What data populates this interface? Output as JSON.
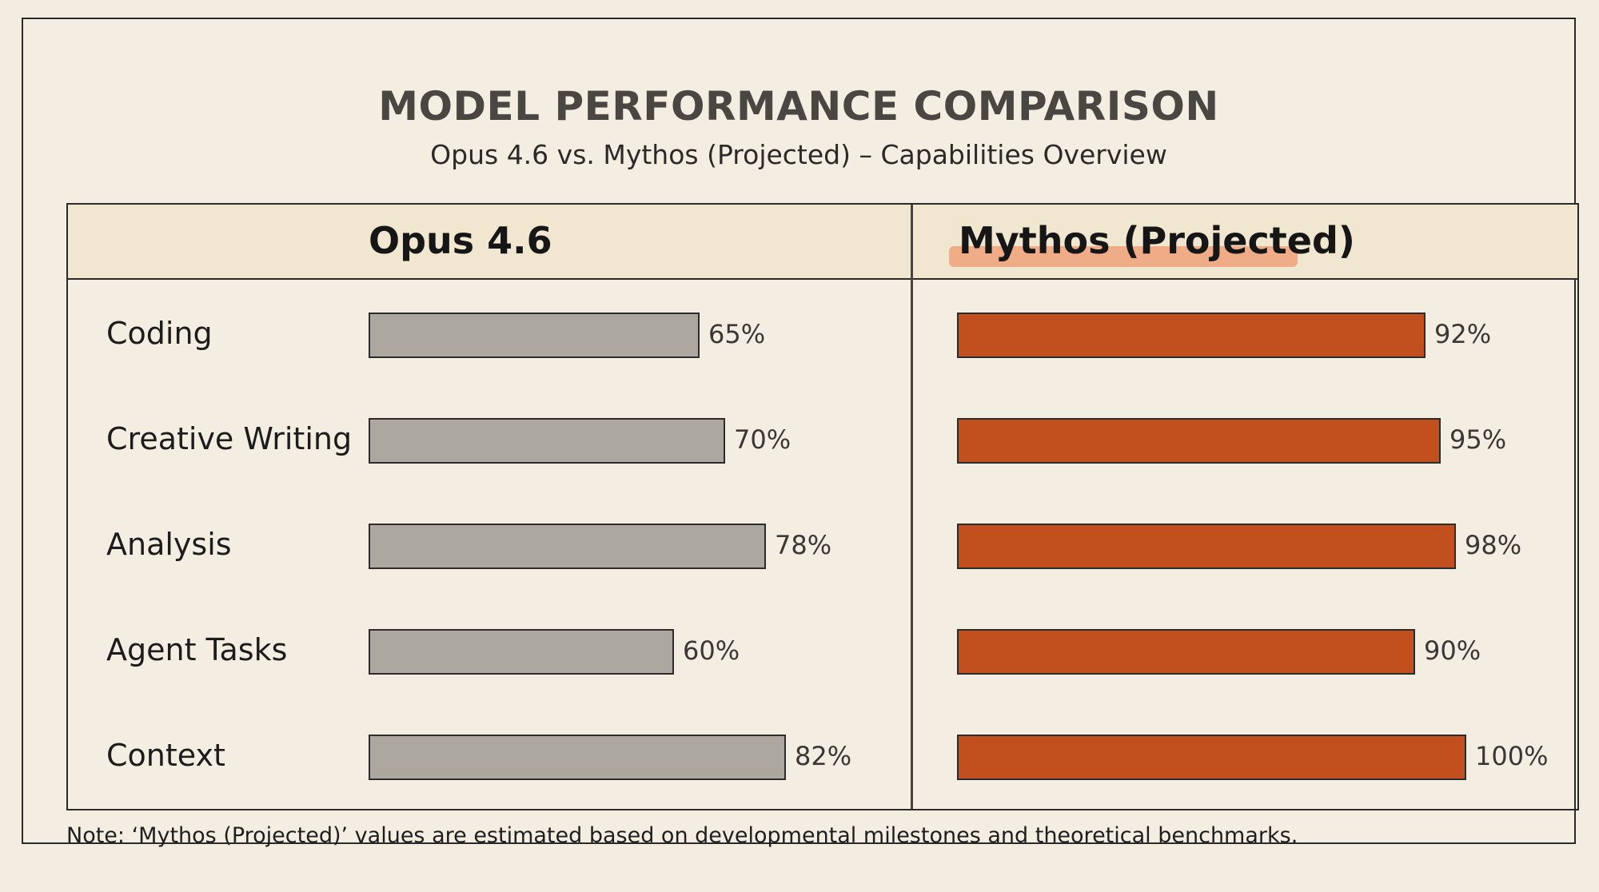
{
  "chart_data": {
    "type": "bar",
    "title": "MODEL PERFORMANCE COMPARISON",
    "subtitle": "Opus 4.6 vs. Mythos (Projected) – Capabilities Overview",
    "categories": [
      "Coding",
      "Creative Writing",
      "Analysis",
      "Agent Tasks",
      "Context"
    ],
    "series": [
      {
        "name": "Opus 4.6",
        "values": [
          65,
          70,
          78,
          60,
          82
        ],
        "labels": [
          "65%",
          "70%",
          "78%",
          "60%",
          "82%"
        ],
        "color": "#aca8a0"
      },
      {
        "name": "Mythos (Projected)",
        "values": [
          92,
          95,
          98,
          90,
          100
        ],
        "labels": [
          "92%",
          "95%",
          "98%",
          "90%",
          "100%"
        ],
        "color": "#c24f1e"
      }
    ],
    "ylim": [
      0,
      100
    ],
    "note": "Note: ‘Mythos (Projected)’ values are estimated based on developmental milestones and theoretical benchmarks."
  }
}
